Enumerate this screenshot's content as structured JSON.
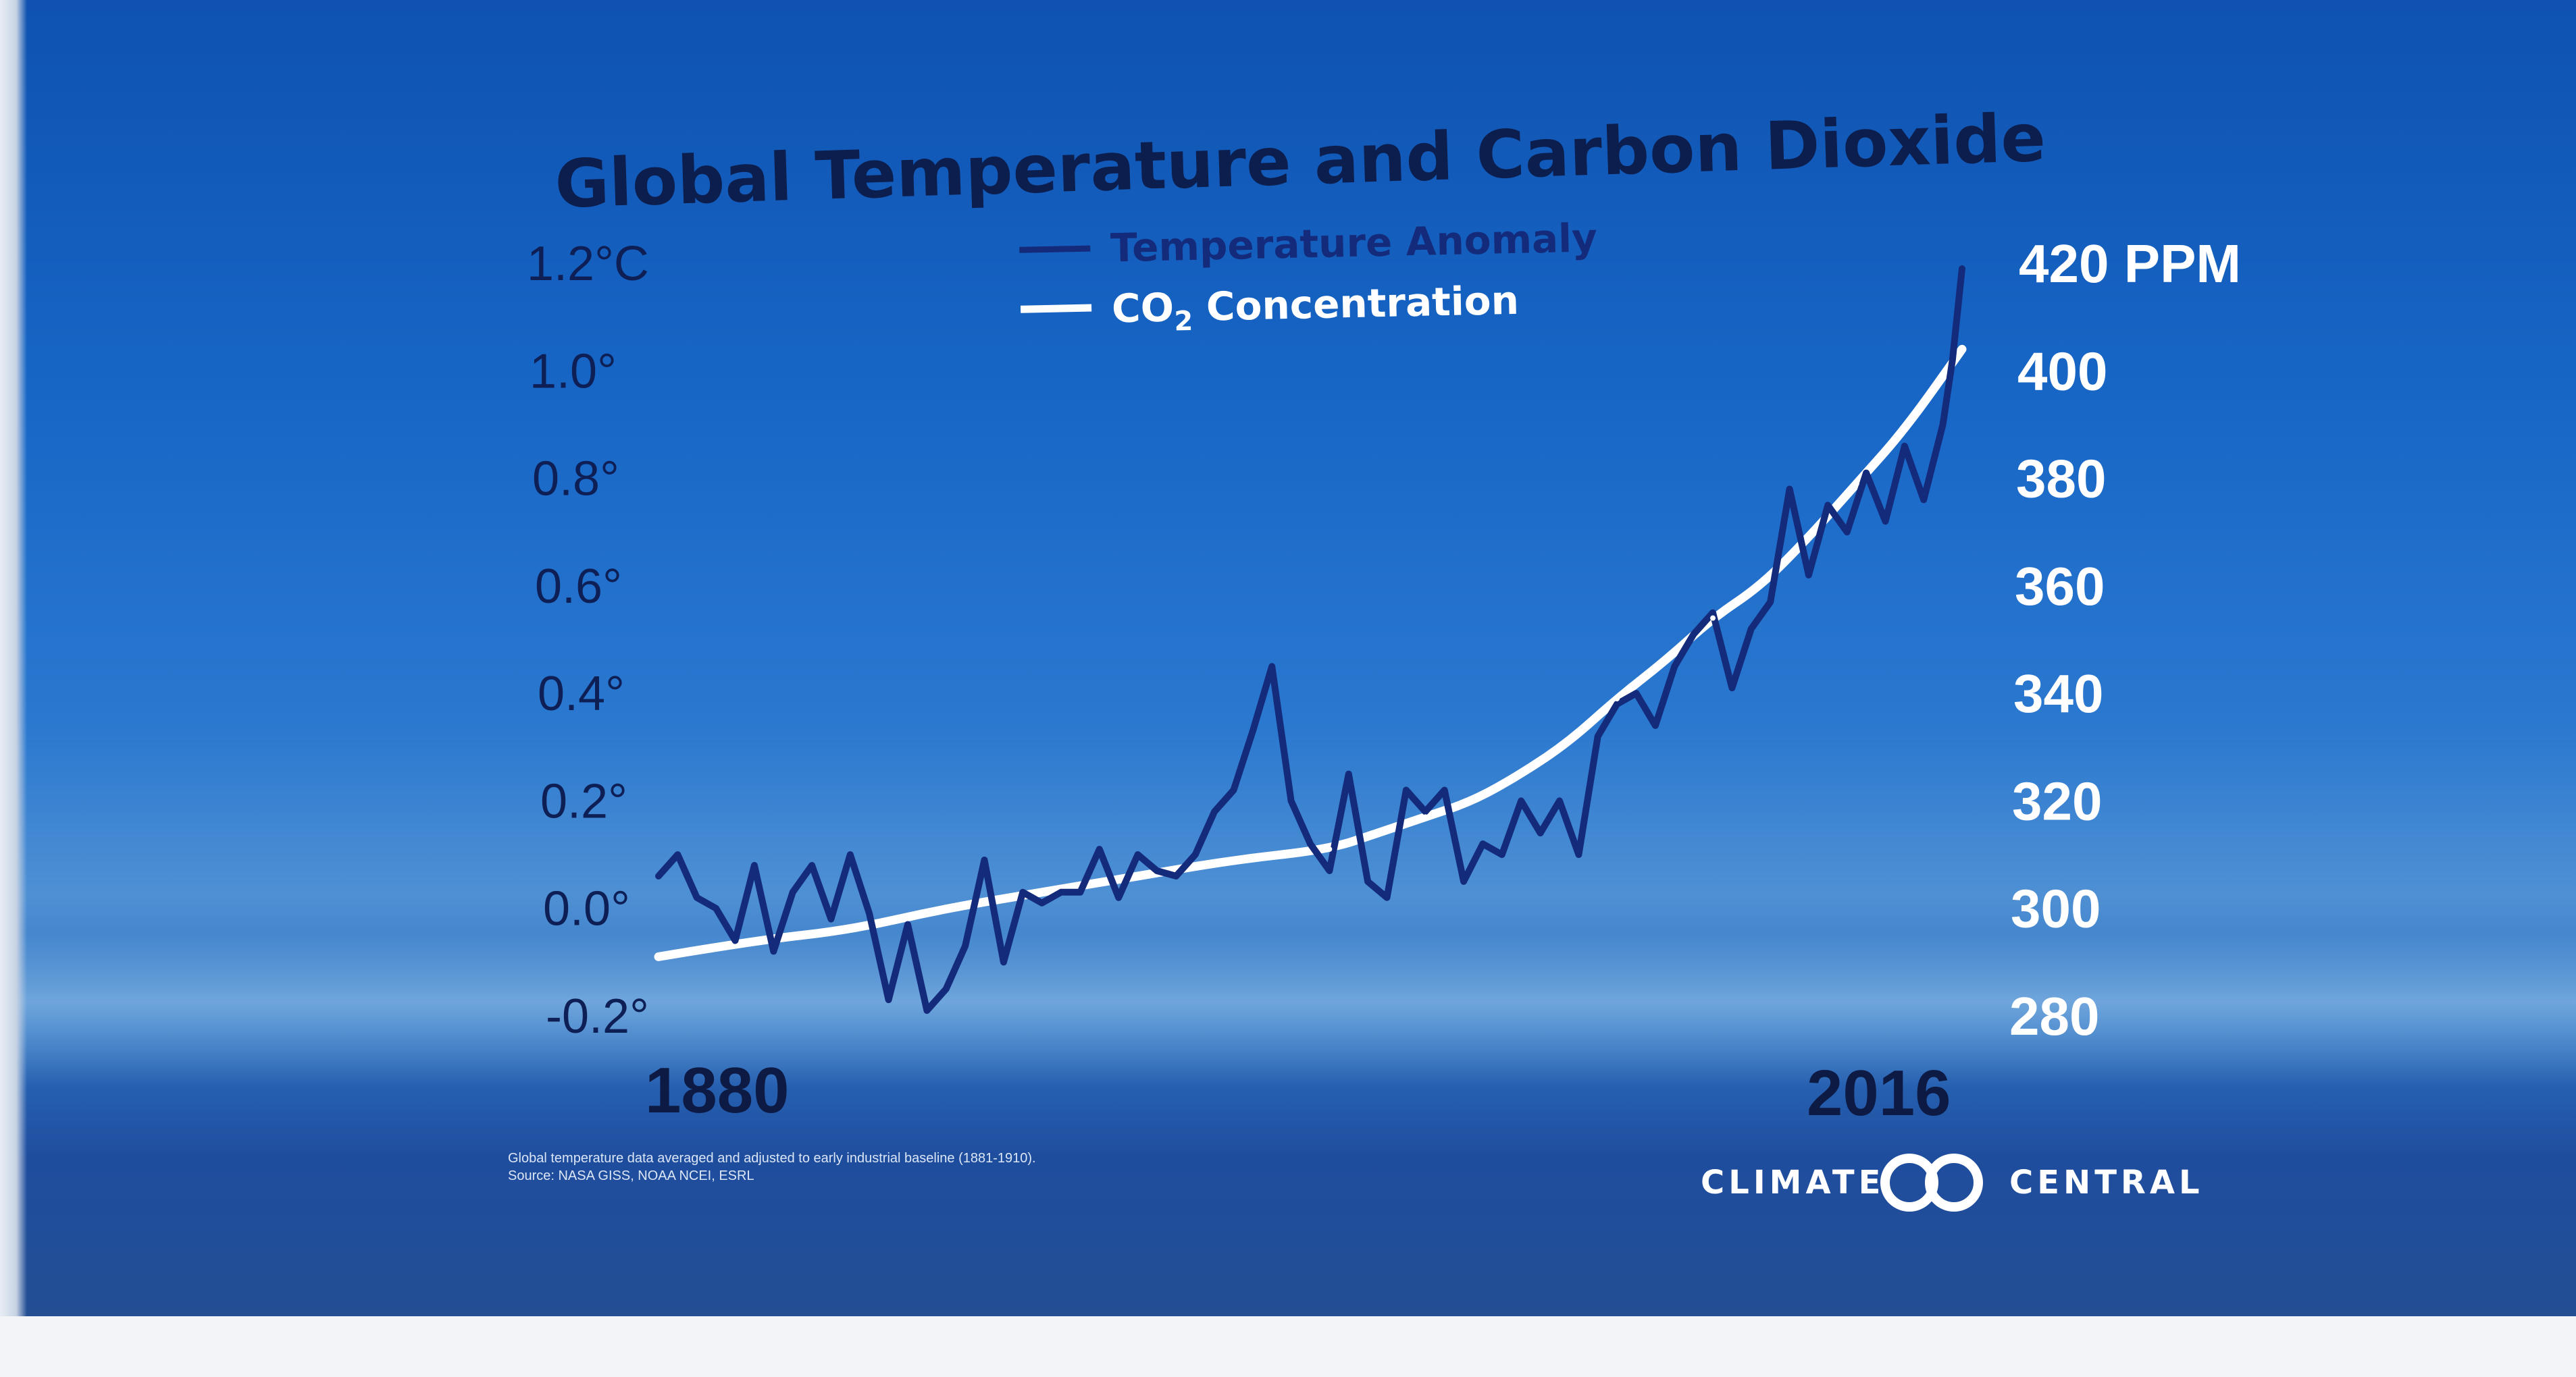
{
  "chart_data": {
    "type": "line",
    "title": "Global Temperature and Carbon Dioxide",
    "legend": [
      {
        "name": "Temperature Anomaly",
        "color": "#142a7a"
      },
      {
        "name_main": "CO",
        "name_sub": "2",
        "name_tail": " Concentration",
        "color": "#ffffff"
      }
    ],
    "legend_placement": "top-center",
    "left_axis": {
      "ticks": [
        -0.2,
        0.0,
        0.2,
        0.4,
        0.6,
        0.8,
        1.0,
        1.2
      ],
      "labels": [
        "-0.2°",
        "0.0°",
        "0.2°",
        "0.4°",
        "0.6°",
        "0.8°",
        "1.0°",
        "1.2°C"
      ],
      "ylim": [
        -0.2,
        1.2
      ]
    },
    "right_axis": {
      "ticks": [
        280,
        300,
        320,
        340,
        360,
        380,
        400,
        420
      ],
      "labels": [
        "280",
        "300",
        "320",
        "340",
        "360",
        "380",
        "400",
        "420 PPM"
      ],
      "ylim": [
        280,
        420
      ]
    },
    "x_labels": [
      "1880",
      "2016"
    ],
    "xlim": [
      1880,
      2016
    ],
    "series": [
      {
        "name": "Temperature Anomaly",
        "axis": "left",
        "x": [
          1880,
          1882,
          1884,
          1886,
          1888,
          1890,
          1892,
          1894,
          1896,
          1898,
          1900,
          1902,
          1904,
          1906,
          1908,
          1910,
          1912,
          1914,
          1916,
          1918,
          1920,
          1922,
          1924,
          1926,
          1928,
          1930,
          1932,
          1934,
          1936,
          1938,
          1940,
          1942,
          1944,
          1946,
          1948,
          1950,
          1952,
          1954,
          1956,
          1958,
          1960,
          1962,
          1964,
          1966,
          1968,
          1970,
          1972,
          1974,
          1976,
          1978,
          1980,
          1982,
          1984,
          1986,
          1988,
          1990,
          1992,
          1994,
          1996,
          1998,
          2000,
          2002,
          2004,
          2006,
          2008,
          2010,
          2012,
          2014,
          2015,
          2016
        ],
        "values": [
          0.06,
          0.1,
          0.02,
          0.0,
          -0.06,
          0.08,
          -0.08,
          0.03,
          0.08,
          -0.02,
          0.1,
          -0.01,
          -0.17,
          -0.03,
          -0.19,
          -0.15,
          -0.07,
          0.09,
          -0.1,
          0.03,
          0.01,
          0.03,
          0.03,
          0.11,
          0.02,
          0.1,
          0.07,
          0.06,
          0.1,
          0.18,
          0.22,
          0.33,
          0.45,
          0.2,
          0.12,
          0.07,
          0.25,
          0.05,
          0.02,
          0.22,
          0.18,
          0.22,
          0.05,
          0.12,
          0.1,
          0.2,
          0.14,
          0.2,
          0.1,
          0.32,
          0.38,
          0.4,
          0.34,
          0.45,
          0.51,
          0.55,
          0.41,
          0.52,
          0.57,
          0.78,
          0.62,
          0.75,
          0.7,
          0.81,
          0.72,
          0.86,
          0.76,
          0.9,
          1.02,
          1.19
        ]
      },
      {
        "name": "CO2 Concentration",
        "axis": "right",
        "x": [
          1880,
          1890,
          1900,
          1910,
          1920,
          1930,
          1940,
          1950,
          1955,
          1960,
          1965,
          1970,
          1975,
          1980,
          1985,
          1990,
          1995,
          2000,
          2005,
          2010,
          2016
        ],
        "values": [
          291,
          294,
          296,
          300,
          303,
          306,
          309,
          311,
          314,
          317,
          320,
          325,
          331,
          339,
          346,
          354,
          360,
          369,
          379,
          389,
          404
        ]
      }
    ]
  },
  "footnote_line1": "Global temperature data averaged and adjusted to early industrial baseline (1881-1910).",
  "footnote_line2": "Source: NASA GISS, NOAA NCEI, ESRL",
  "brand": {
    "left": "CLIMATE",
    "right": "CENTRAL"
  },
  "colors": {
    "temperature": "#142a7a",
    "co2": "#ffffff",
    "brand_circle": "#ffffff"
  }
}
